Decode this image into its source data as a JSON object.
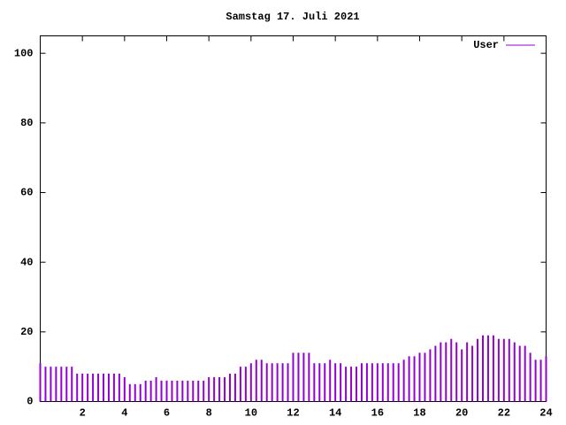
{
  "chart_data": {
    "type": "impulse",
    "title": "Samstag 17. Juli 2021",
    "x": [
      0,
      0.25,
      0.5,
      0.75,
      1,
      1.25,
      1.5,
      1.75,
      2,
      2.25,
      2.5,
      2.75,
      3,
      3.25,
      3.5,
      3.75,
      4,
      4.25,
      4.5,
      4.75,
      5,
      5.25,
      5.5,
      5.75,
      6,
      6.25,
      6.5,
      6.75,
      7,
      7.25,
      7.5,
      7.75,
      8,
      8.25,
      8.5,
      8.75,
      9,
      9.25,
      9.5,
      9.75,
      10,
      10.25,
      10.5,
      10.75,
      11,
      11.25,
      11.5,
      11.75,
      12,
      12.25,
      12.5,
      12.75,
      13,
      13.25,
      13.5,
      13.75,
      14,
      14.25,
      14.5,
      14.75,
      15,
      15.25,
      15.5,
      15.75,
      16,
      16.25,
      16.5,
      16.75,
      17,
      17.25,
      17.5,
      17.75,
      18,
      18.25,
      18.5,
      18.75,
      19,
      19.25,
      19.5,
      19.75,
      20,
      20.25,
      20.5,
      20.75,
      21,
      21.25,
      21.5,
      21.75,
      22,
      22.25,
      22.5,
      22.75,
      23,
      23.25,
      23.5,
      23.75,
      24
    ],
    "series": [
      {
        "name": "User",
        "color": "#9400d3",
        "values": [
          11,
          10,
          10,
          10,
          10,
          10,
          10,
          8,
          8,
          8,
          8,
          8,
          8,
          8,
          8,
          8,
          7,
          5,
          5,
          5,
          6,
          6,
          7,
          6,
          6,
          6,
          6,
          6,
          6,
          6,
          6,
          6,
          7,
          7,
          7,
          7,
          8,
          8,
          10,
          10,
          11,
          12,
          12,
          11,
          11,
          11,
          11,
          11,
          14,
          14,
          14,
          14,
          11,
          11,
          11,
          12,
          11,
          11,
          10,
          10,
          10,
          11,
          11,
          11,
          11,
          11,
          11,
          11,
          11,
          12,
          13,
          13,
          14,
          14,
          15,
          16,
          17,
          17,
          18,
          17,
          15,
          17,
          16,
          18,
          19,
          19,
          19,
          18,
          18,
          18,
          17,
          16,
          16,
          14,
          12,
          12,
          13
        ]
      }
    ],
    "xlim": [
      0,
      24
    ],
    "xticks": [
      2,
      4,
      6,
      8,
      10,
      12,
      14,
      16,
      18,
      20,
      22,
      24
    ],
    "ylim": [
      0,
      105
    ],
    "yticks": [
      0,
      20,
      40,
      60,
      80,
      100
    ],
    "legend": "top-right",
    "grid": false
  }
}
